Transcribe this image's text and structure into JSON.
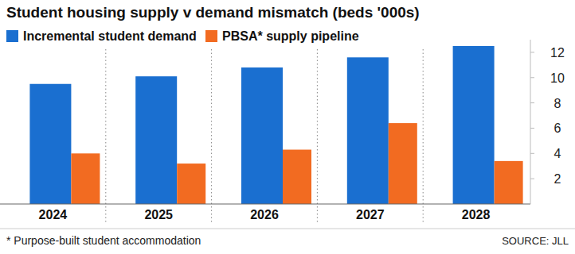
{
  "chart_data": {
    "type": "bar",
    "title": "Student housing supply v demand mismatch (beds '000s)",
    "categories": [
      "2024",
      "2025",
      "2026",
      "2027",
      "2028"
    ],
    "series": [
      {
        "name": "Incremental student demand",
        "color": "#1a6fd0",
        "values": [
          9.5,
          10.1,
          10.8,
          11.6,
          12.5
        ]
      },
      {
        "name": "PBSA* supply pipeline",
        "color": "#f26b21",
        "values": [
          4.0,
          3.2,
          4.3,
          6.4,
          3.4
        ]
      }
    ],
    "ylim": [
      0,
      13
    ],
    "yticks": [
      2,
      4,
      6,
      8,
      10,
      12
    ],
    "grid": false,
    "legend": "top-left",
    "footnote": "* Purpose-built student accommodation",
    "source": "SOURCE: JLL"
  }
}
